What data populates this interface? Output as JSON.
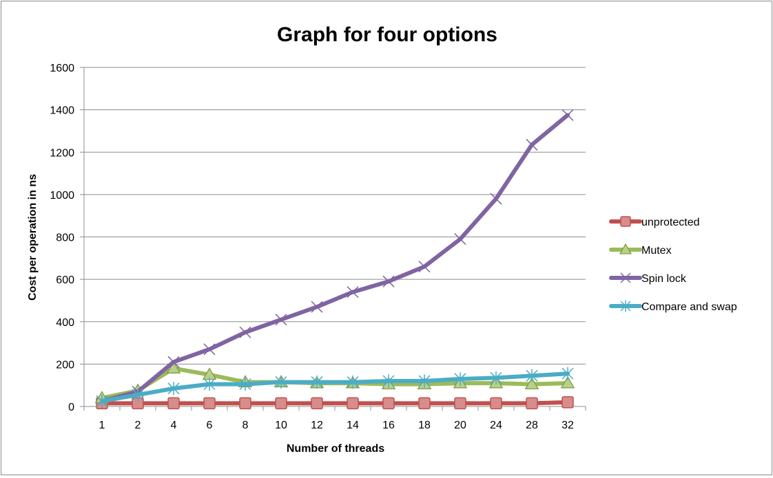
{
  "chart_data": {
    "type": "line",
    "title": "Graph for four options",
    "xlabel": "Number of threads",
    "ylabel": "Cost per operation in ns",
    "categories": [
      "1",
      "2",
      "4",
      "6",
      "8",
      "10",
      "12",
      "14",
      "16",
      "18",
      "20",
      "24",
      "28",
      "32"
    ],
    "ylim": [
      0,
      1600
    ],
    "yticks": [
      0,
      200,
      400,
      600,
      800,
      1000,
      1200,
      1400,
      1600
    ],
    "grid": true,
    "legend_position": "right",
    "series": [
      {
        "name": "unprotected",
        "color": "#c0504d",
        "marker": "square",
        "values": [
          15,
          15,
          15,
          15,
          15,
          15,
          15,
          15,
          15,
          15,
          15,
          15,
          15,
          20
        ]
      },
      {
        "name": "Mutex",
        "color": "#9bbb59",
        "marker": "triangle",
        "values": [
          40,
          75,
          180,
          150,
          115,
          115,
          110,
          110,
          105,
          105,
          110,
          110,
          105,
          110
        ]
      },
      {
        "name": "Spin lock",
        "color": "#8064a2",
        "marker": "x",
        "values": [
          25,
          70,
          210,
          270,
          350,
          410,
          470,
          540,
          590,
          660,
          790,
          980,
          1235,
          1375
        ]
      },
      {
        "name": "Compare and swap",
        "color": "#4bacc6",
        "marker": "asterisk",
        "values": [
          25,
          55,
          85,
          105,
          105,
          115,
          115,
          115,
          120,
          120,
          130,
          135,
          145,
          155
        ]
      }
    ]
  }
}
